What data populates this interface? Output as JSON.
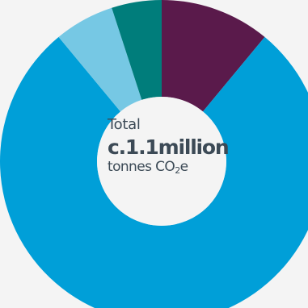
{
  "chart_data": {
    "type": "pie",
    "variant": "donut",
    "slices": [
      {
        "value": 11,
        "color": "#5a1a4b"
      },
      {
        "value": 78,
        "color": "#009fd8"
      },
      {
        "value": 6,
        "color": "#76c8e4"
      },
      {
        "value": 5,
        "color": "#007d7b"
      }
    ],
    "center": {
      "label": "Total",
      "value": "c.1.1million",
      "unit_prefix": "tonnes CO",
      "unit_subscript": "2",
      "unit_suffix": "e"
    }
  }
}
